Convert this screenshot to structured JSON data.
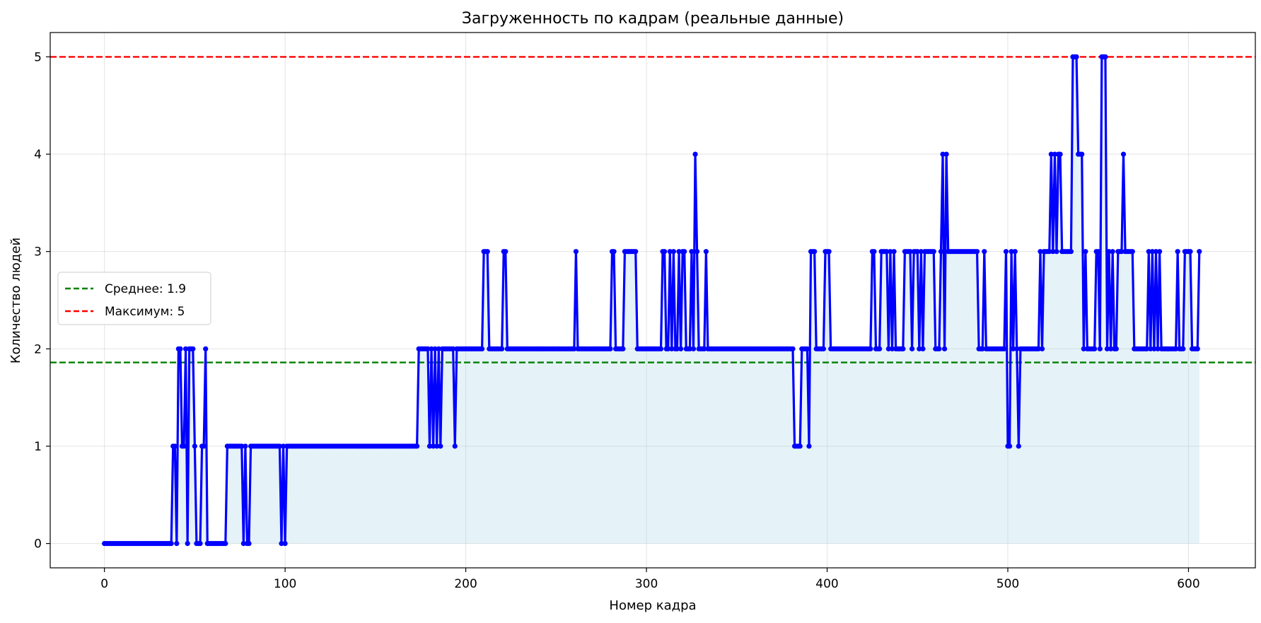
{
  "chart_data": {
    "type": "line",
    "title": "Загруженность по кадрам (реальные данные)",
    "xlabel": "Номер кадра",
    "ylabel": "Количество людей",
    "xlim": [
      -30,
      637
    ],
    "ylim": [
      -0.25,
      5.25
    ],
    "xticks": [
      0,
      100,
      200,
      300,
      400,
      500,
      600
    ],
    "yticks": [
      0,
      1,
      2,
      3,
      4,
      5
    ],
    "grid": true,
    "legend_position": "center-left",
    "fill_color": "#add8e6",
    "line_color": "#0000ff",
    "series_segments": [
      [
        0,
        0
      ],
      [
        37,
        0
      ],
      [
        38,
        1
      ],
      [
        39,
        1
      ],
      [
        40,
        0
      ],
      [
        41,
        2
      ],
      [
        42,
        2
      ],
      [
        43,
        1
      ],
      [
        45,
        2
      ],
      [
        46,
        0
      ],
      [
        47,
        2
      ],
      [
        49,
        2
      ],
      [
        50,
        1
      ],
      [
        51,
        0
      ],
      [
        53,
        0
      ],
      [
        54,
        1
      ],
      [
        55,
        1
      ],
      [
        56,
        2
      ],
      [
        57,
        0
      ],
      [
        67,
        0
      ],
      [
        68,
        1
      ],
      [
        76,
        1
      ],
      [
        77,
        0
      ],
      [
        78,
        1
      ],
      [
        79,
        0
      ],
      [
        80,
        0
      ],
      [
        81,
        1
      ],
      [
        97,
        1
      ],
      [
        98,
        0
      ],
      [
        99,
        1
      ],
      [
        100,
        0
      ],
      [
        101,
        1
      ],
      [
        173,
        1
      ],
      [
        174,
        2
      ],
      [
        179,
        2
      ],
      [
        180,
        1
      ],
      [
        181,
        2
      ],
      [
        182,
        1
      ],
      [
        183,
        2
      ],
      [
        184,
        1
      ],
      [
        185,
        2
      ],
      [
        186,
        1
      ],
      [
        187,
        2
      ],
      [
        193,
        2
      ],
      [
        194,
        1
      ],
      [
        195,
        2
      ],
      [
        209,
        2
      ],
      [
        210,
        3
      ],
      [
        212,
        3
      ],
      [
        213,
        2
      ],
      [
        220,
        2
      ],
      [
        221,
        3
      ],
      [
        222,
        3
      ],
      [
        223,
        2
      ],
      [
        260,
        2
      ],
      [
        261,
        3
      ],
      [
        262,
        2
      ],
      [
        280,
        2
      ],
      [
        281,
        3
      ],
      [
        282,
        3
      ],
      [
        283,
        2
      ],
      [
        287,
        2
      ],
      [
        288,
        3
      ],
      [
        294,
        3
      ],
      [
        295,
        2
      ],
      [
        308,
        2
      ],
      [
        309,
        3
      ],
      [
        310,
        3
      ],
      [
        311,
        2
      ],
      [
        313,
        3
      ],
      [
        314,
        2
      ],
      [
        315,
        3
      ],
      [
        316,
        2
      ],
      [
        318,
        3
      ],
      [
        319,
        2
      ],
      [
        320,
        3
      ],
      [
        321,
        3
      ],
      [
        322,
        2
      ],
      [
        325,
        3
      ],
      [
        326,
        2
      ],
      [
        327,
        4
      ],
      [
        328,
        3
      ],
      [
        329,
        2
      ],
      [
        333,
        3
      ],
      [
        334,
        2
      ],
      [
        381,
        2
      ],
      [
        382,
        1
      ],
      [
        385,
        1
      ],
      [
        386,
        2
      ],
      [
        389,
        2
      ],
      [
        390,
        1
      ],
      [
        391,
        3
      ],
      [
        393,
        3
      ],
      [
        394,
        2
      ],
      [
        398,
        2
      ],
      [
        399,
        3
      ],
      [
        401,
        3
      ],
      [
        402,
        2
      ],
      [
        424,
        2
      ],
      [
        425,
        3
      ],
      [
        426,
        3
      ],
      [
        427,
        2
      ],
      [
        429,
        2
      ],
      [
        430,
        3
      ],
      [
        433,
        3
      ],
      [
        434,
        2
      ],
      [
        435,
        3
      ],
      [
        436,
        2
      ],
      [
        437,
        3
      ],
      [
        438,
        2
      ],
      [
        442,
        2
      ],
      [
        443,
        3
      ],
      [
        446,
        3
      ],
      [
        447,
        2
      ],
      [
        448,
        3
      ],
      [
        450,
        3
      ],
      [
        451,
        2
      ],
      [
        452,
        3
      ],
      [
        453,
        2
      ],
      [
        454,
        3
      ],
      [
        459,
        3
      ],
      [
        460,
        2
      ],
      [
        462,
        2
      ],
      [
        463,
        3
      ],
      [
        464,
        4
      ],
      [
        465,
        2
      ],
      [
        466,
        4
      ],
      [
        467,
        3
      ],
      [
        483,
        3
      ],
      [
        484,
        2
      ],
      [
        486,
        2
      ],
      [
        487,
        3
      ],
      [
        488,
        2
      ],
      [
        498,
        2
      ],
      [
        499,
        3
      ],
      [
        500,
        1
      ],
      [
        501,
        1
      ],
      [
        502,
        3
      ],
      [
        503,
        2
      ],
      [
        504,
        3
      ],
      [
        505,
        2
      ],
      [
        506,
        1
      ],
      [
        507,
        2
      ],
      [
        517,
        2
      ],
      [
        518,
        3
      ],
      [
        519,
        2
      ],
      [
        520,
        3
      ],
      [
        523,
        3
      ],
      [
        524,
        4
      ],
      [
        525,
        3
      ],
      [
        526,
        4
      ],
      [
        527,
        3
      ],
      [
        528,
        4
      ],
      [
        529,
        4
      ],
      [
        530,
        3
      ],
      [
        535,
        3
      ],
      [
        536,
        5
      ],
      [
        538,
        5
      ],
      [
        539,
        4
      ],
      [
        541,
        4
      ],
      [
        542,
        2
      ],
      [
        543,
        3
      ],
      [
        544,
        2
      ],
      [
        548,
        2
      ],
      [
        549,
        3
      ],
      [
        550,
        3
      ],
      [
        551,
        2
      ],
      [
        552,
        5
      ],
      [
        554,
        5
      ],
      [
        555,
        2
      ],
      [
        556,
        3
      ],
      [
        557,
        2
      ],
      [
        558,
        3
      ],
      [
        559,
        2
      ],
      [
        560,
        2
      ],
      [
        561,
        3
      ],
      [
        563,
        3
      ],
      [
        564,
        4
      ],
      [
        565,
        3
      ],
      [
        569,
        3
      ],
      [
        570,
        2
      ],
      [
        577,
        2
      ],
      [
        578,
        3
      ],
      [
        579,
        2
      ],
      [
        580,
        3
      ],
      [
        581,
        2
      ],
      [
        582,
        3
      ],
      [
        583,
        2
      ],
      [
        584,
        3
      ],
      [
        585,
        2
      ],
      [
        593,
        2
      ],
      [
        594,
        3
      ],
      [
        595,
        2
      ],
      [
        597,
        2
      ],
      [
        598,
        3
      ],
      [
        601,
        3
      ],
      [
        602,
        2
      ],
      [
        605,
        2
      ],
      [
        606,
        3
      ]
    ],
    "x_last": 606,
    "reference_lines": [
      {
        "name": "Среднее: 1.9",
        "value": 1.86,
        "color": "#008000",
        "style": "dashed"
      },
      {
        "name": "Максимум: 5",
        "value": 5,
        "color": "#ff0000",
        "style": "dashed"
      }
    ]
  }
}
